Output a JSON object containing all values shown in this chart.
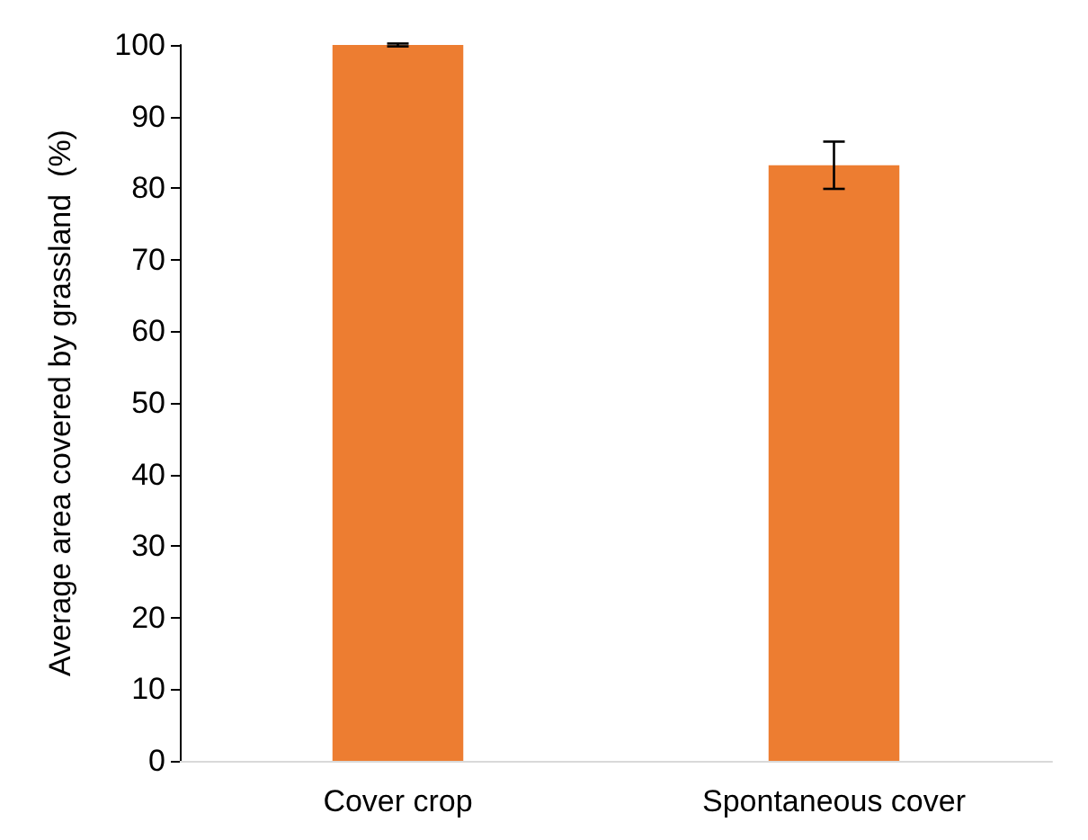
{
  "chart_data": {
    "type": "bar",
    "ylabel": "Average area covered by grassland  (%)",
    "categories": [
      "Cover crop",
      "Spontaneous cover"
    ],
    "values": [
      100,
      83.2
    ],
    "errors": [
      0.2,
      3.3
    ],
    "color": "#ed7d31",
    "ylim": [
      0,
      100
    ],
    "yticks": [
      0,
      10,
      20,
      30,
      40,
      50,
      60,
      70,
      80,
      90,
      100
    ],
    "grid": false
  }
}
